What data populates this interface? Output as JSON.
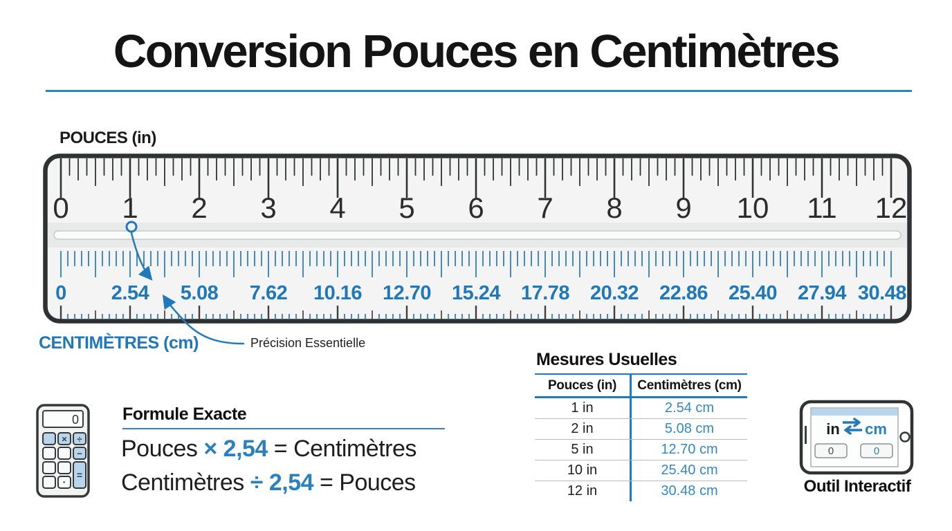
{
  "colors": {
    "accent": "#2178ba",
    "accent_light": "#b9d5ec",
    "table_line_blue": "#1a7cc0",
    "ruler_border": "#2e3232"
  },
  "title": "Conversion Pouces en Centimètres",
  "ruler": {
    "top_label": "POUCES (in)",
    "bottom_label": "CENTIMÈTRES (cm)",
    "inch_labels": [
      "0",
      "1",
      "2",
      "3",
      "4",
      "5",
      "6",
      "7",
      "8",
      "9",
      "10",
      "11",
      "12"
    ],
    "cm_labels": [
      "0",
      "2.54",
      "5.08",
      "7.62",
      "10.16",
      "12.70",
      "15.24",
      "17.78",
      "20.32",
      "22.86",
      "25.40",
      "27.94",
      "30.48"
    ],
    "annotation": "Précision Essentielle"
  },
  "formula": {
    "heading": "Formule Exacte",
    "line1": {
      "prefix": "Pouces ",
      "highlight": "× 2,54",
      "suffix": " = Centimètres"
    },
    "line2": {
      "prefix": "Centimètres ",
      "highlight": "÷ 2,54",
      "suffix": " = Pouces"
    }
  },
  "calculator": {
    "display": "0",
    "multiply": "×",
    "divide": "÷",
    "minus": "−",
    "equals": "=",
    "dot": "·"
  },
  "table": {
    "heading": "Mesures Usuelles",
    "columns": [
      "Pouces (in)",
      "Centimètres (cm)"
    ],
    "rows": [
      [
        "1 in",
        "2.54 cm"
      ],
      [
        "2 in",
        "5.08 cm"
      ],
      [
        "5 in",
        "12.70 cm"
      ],
      [
        "10 in",
        "25.40 cm"
      ],
      [
        "12 in",
        "30.48 cm"
      ]
    ]
  },
  "tool": {
    "unit_left": "in",
    "unit_right": "cm",
    "input_left": "0",
    "input_right": "0",
    "caption": "Outil Interactif"
  }
}
